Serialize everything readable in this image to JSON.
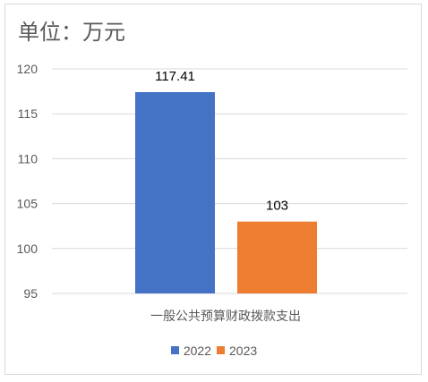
{
  "unit_label": "单位：万元",
  "chart_data": {
    "type": "bar",
    "categories": [
      "一般公共预算财政拨款支出"
    ],
    "series": [
      {
        "name": "2022",
        "values": [
          117.41
        ],
        "color": "#4472C4",
        "label": "117.41"
      },
      {
        "name": "2023",
        "values": [
          103
        ],
        "color": "#ED7D31",
        "label": "103"
      }
    ],
    "ylim": [
      95,
      120
    ],
    "yticks": [
      "95",
      "100",
      "105",
      "110",
      "115",
      "120"
    ],
    "grid": true,
    "legend_position": "bottom"
  }
}
